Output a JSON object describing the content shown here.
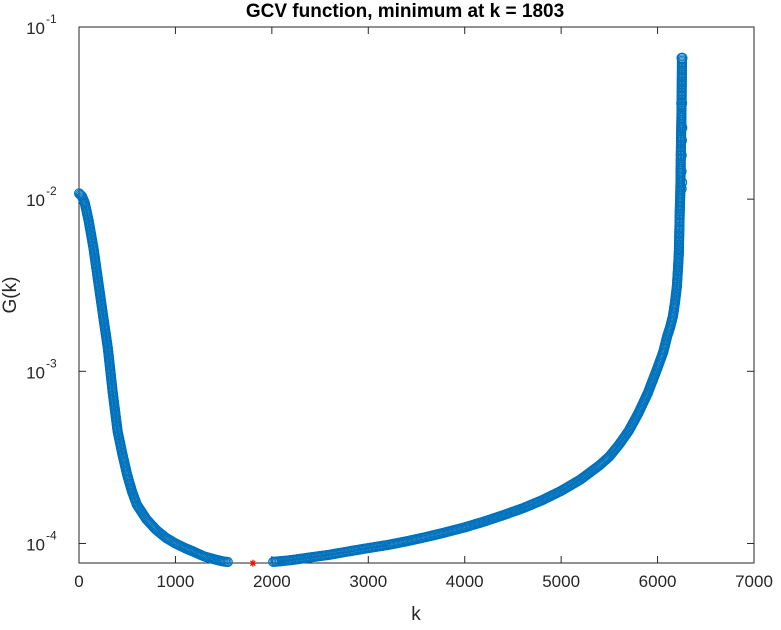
{
  "chart_data": {
    "type": "scatter",
    "title": "GCV function, minimum at k = 1803",
    "xlabel": "k",
    "ylabel": "G(k)",
    "xlim": [
      0,
      7000
    ],
    "ylim": [
      7.7e-05,
      0.1
    ],
    "yscale": "log",
    "grid": false,
    "legend": "none",
    "x_ticks": [
      "0",
      "1000",
      "2000",
      "3000",
      "4000",
      "5000",
      "6000",
      "7000"
    ],
    "y_ticks": [
      {
        "base": "10",
        "exp": "-4"
      },
      {
        "base": "10",
        "exp": "-3"
      },
      {
        "base": "10",
        "exp": "-2"
      },
      {
        "base": "10",
        "exp": "-1"
      }
    ],
    "series": [
      {
        "marker": "circle",
        "color": "#0072BD",
        "points": [
          [
            1,
            0.0108
          ],
          [
            30,
            0.0104
          ],
          [
            60,
            0.0095
          ],
          [
            100,
            0.0075
          ],
          [
            150,
            0.0052
          ],
          [
            200,
            0.0033
          ],
          [
            250,
            0.0021
          ],
          [
            300,
            0.00135
          ],
          [
            350,
            0.00075
          ],
          [
            400,
            0.00045
          ],
          [
            450,
            0.00033
          ],
          [
            500,
            0.00025
          ],
          [
            550,
            0.0002
          ],
          [
            600,
            0.000168
          ],
          [
            700,
            0.000138
          ],
          [
            800,
            0.00012
          ],
          [
            900,
            0.000108
          ],
          [
            1000,
            0.0001
          ],
          [
            1100,
            9.4e-05
          ],
          [
            1200,
            8.9e-05
          ],
          [
            1300,
            8.4e-05
          ],
          [
            1400,
            8.1e-05
          ],
          [
            1500,
            7.85e-05
          ],
          [
            1600,
            7.75e-05
          ],
          [
            1700,
            7.7e-05
          ],
          [
            1803,
            7.68e-05
          ],
          [
            1900,
            7.75e-05
          ],
          [
            2000,
            7.8e-05
          ],
          [
            2200,
            8e-05
          ],
          [
            2400,
            8.3e-05
          ],
          [
            2600,
            8.6e-05
          ],
          [
            2800,
            9e-05
          ],
          [
            3000,
            9.4e-05
          ],
          [
            3200,
            9.8e-05
          ],
          [
            3400,
            0.000103
          ],
          [
            3600,
            0.000109
          ],
          [
            3800,
            0.000116
          ],
          [
            4000,
            0.000124
          ],
          [
            4200,
            0.000134
          ],
          [
            4400,
            0.000146
          ],
          [
            4600,
            0.00016
          ],
          [
            4800,
            0.000178
          ],
          [
            5000,
            0.000202
          ],
          [
            5200,
            0.000235
          ],
          [
            5400,
            0.000285
          ],
          [
            5500,
            0.00032
          ],
          [
            5600,
            0.000375
          ],
          [
            5700,
            0.00045
          ],
          [
            5800,
            0.00057
          ],
          [
            5900,
            0.00075
          ],
          [
            6000,
            0.00105
          ],
          [
            6060,
            0.0013
          ],
          [
            6100,
            0.0016
          ],
          [
            6130,
            0.0018
          ],
          [
            6160,
            0.0021
          ],
          [
            6180,
            0.0025
          ],
          [
            6200,
            0.0031
          ],
          [
            6210,
            0.0038
          ],
          [
            6220,
            0.0048
          ],
          [
            6225,
            0.0063
          ],
          [
            6230,
            0.0085
          ],
          [
            6235,
            0.0105
          ],
          [
            6238,
            0.013
          ],
          [
            6240,
            0.016
          ],
          [
            6242,
            0.02
          ],
          [
            6245,
            0.025
          ],
          [
            6248,
            0.032
          ],
          [
            6250,
            0.04
          ],
          [
            6253,
            0.066
          ]
        ]
      },
      {
        "marker": "asterisk",
        "color": "#FF0000",
        "points": [
          [
            1803,
            7.68e-05
          ]
        ]
      }
    ]
  }
}
